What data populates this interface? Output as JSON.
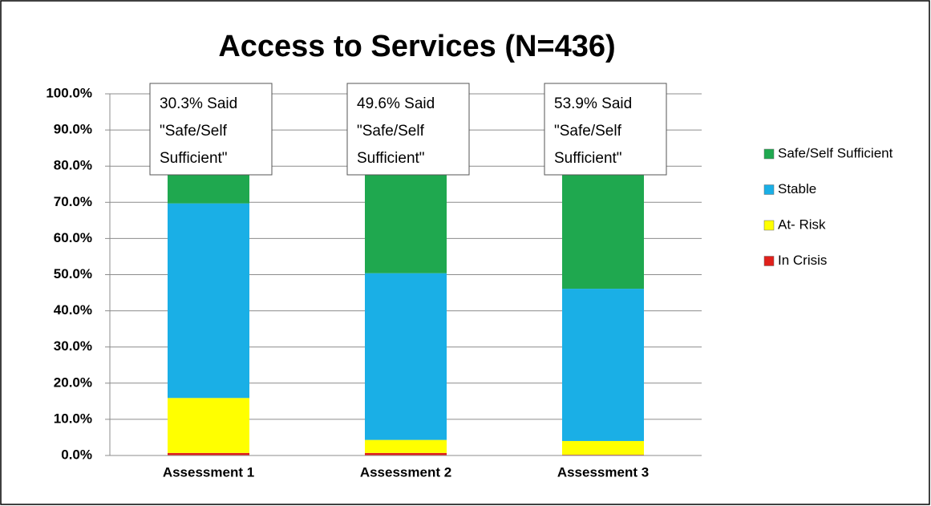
{
  "chart_data": {
    "type": "stacked_bar",
    "title": "Access to Services (N=436)",
    "categories": [
      "Assessment 1",
      "Assessment 2",
      "Assessment 3"
    ],
    "series": [
      {
        "name": "In Crisis",
        "color": "#e0201b",
        "values": [
          0.7,
          0.7,
          0.2
        ]
      },
      {
        "name": "At- Risk",
        "color": "#ffff00",
        "values": [
          15.2,
          3.6,
          3.8
        ]
      },
      {
        "name": "Stable",
        "color": "#1aafe6",
        "values": [
          53.8,
          46.1,
          42.1
        ]
      },
      {
        "name": "Safe/Self Sufficient",
        "color": "#1fa84f",
        "values": [
          30.3,
          49.6,
          53.9
        ]
      }
    ],
    "annotations": [
      [
        "30.3% Said",
        "\"Safe/Self",
        "Sufficient\""
      ],
      [
        "49.6% Said",
        "\"Safe/Self",
        "Sufficient\""
      ],
      [
        "53.9% Said",
        "\"Safe/Self",
        "Sufficient\""
      ]
    ],
    "ylim": [
      0,
      100
    ],
    "yticks": [
      {
        "value": 0,
        "label": "0.0%"
      },
      {
        "value": 10,
        "label": "10.0%"
      },
      {
        "value": 20,
        "label": "20.0%"
      },
      {
        "value": 30,
        "label": "30.0%"
      },
      {
        "value": 40,
        "label": "40.0%"
      },
      {
        "value": 50,
        "label": "50.0%"
      },
      {
        "value": 60,
        "label": "60.0%"
      },
      {
        "value": 70,
        "label": "70.0%"
      },
      {
        "value": 80,
        "label": "80.0%"
      },
      {
        "value": 90,
        "label": "90.0%"
      },
      {
        "value": 100,
        "label": "100.0%"
      }
    ],
    "grid": true,
    "legend": "right"
  }
}
